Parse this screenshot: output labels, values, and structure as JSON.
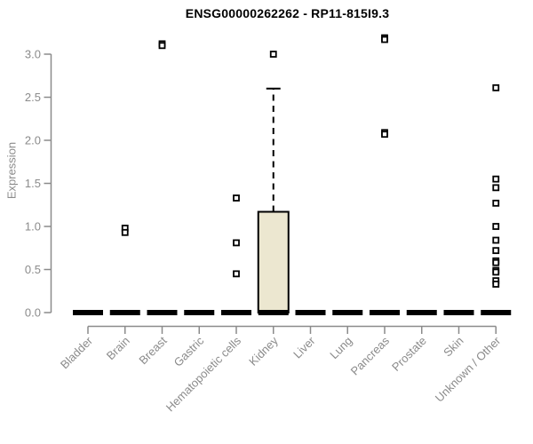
{
  "colors": {
    "background": "#ffffff",
    "axis": "#8b8b8b",
    "tick_label": "#8b8b8b",
    "title": "#000000",
    "box_fill": "#ece7d0",
    "box_border": "#000000",
    "median": "#000000",
    "outlier_stroke": "#000000",
    "outlier_fill": "#ffffff"
  },
  "chart_data": {
    "type": "boxplot",
    "title": "ENSG00000262262 - RP11-815I9.3",
    "ylabel": "Expression",
    "xlabel": "",
    "ylim": [
      0,
      3.25
    ],
    "yticks": [
      0.0,
      0.5,
      1.0,
      1.5,
      2.0,
      2.5,
      3.0
    ],
    "grid": "off",
    "legend": "none",
    "outlier_marker": "open-square",
    "categories": [
      "Bladder",
      "Brain",
      "Breast",
      "Gastric",
      "Hematopoietic cells",
      "Kidney",
      "Liver",
      "Lung",
      "Pancreas",
      "Prostate",
      "Skin",
      "Unknown / Other"
    ],
    "boxes": [
      {
        "category": "Bladder",
        "median": 0,
        "q1": 0,
        "q3": 0,
        "whisker_low": 0,
        "whisker_high": 0,
        "outliers": []
      },
      {
        "category": "Brain",
        "median": 0,
        "q1": 0,
        "q3": 0,
        "whisker_low": 0,
        "whisker_high": 0,
        "outliers": [
          0.98,
          0.93
        ]
      },
      {
        "category": "Breast",
        "median": 0,
        "q1": 0,
        "q3": 0,
        "whisker_low": 0,
        "whisker_high": 0,
        "outliers": [
          3.12,
          3.1
        ]
      },
      {
        "category": "Gastric",
        "median": 0,
        "q1": 0,
        "q3": 0,
        "whisker_low": 0,
        "whisker_high": 0,
        "outliers": []
      },
      {
        "category": "Hematopoietic cells",
        "median": 0,
        "q1": 0,
        "q3": 0,
        "whisker_low": 0,
        "whisker_high": 0,
        "outliers": [
          1.33,
          0.81,
          0.45
        ]
      },
      {
        "category": "Kidney",
        "median": 0,
        "q1": 0,
        "q3": 1.17,
        "whisker_low": 0,
        "whisker_high": 2.6,
        "outliers": [
          3.0
        ]
      },
      {
        "category": "Liver",
        "median": 0,
        "q1": 0,
        "q3": 0,
        "whisker_low": 0,
        "whisker_high": 0,
        "outliers": []
      },
      {
        "category": "Lung",
        "median": 0,
        "q1": 0,
        "q3": 0,
        "whisker_low": 0,
        "whisker_high": 0,
        "outliers": []
      },
      {
        "category": "Pancreas",
        "median": 0,
        "q1": 0,
        "q3": 0,
        "whisker_low": 0,
        "whisker_high": 0,
        "outliers": [
          3.19,
          3.17,
          2.09,
          2.07
        ]
      },
      {
        "category": "Prostate",
        "median": 0,
        "q1": 0,
        "q3": 0,
        "whisker_low": 0,
        "whisker_high": 0,
        "outliers": []
      },
      {
        "category": "Skin",
        "median": 0,
        "q1": 0,
        "q3": 0,
        "whisker_low": 0,
        "whisker_high": 0,
        "outliers": []
      },
      {
        "category": "Unknown / Other",
        "median": 0,
        "q1": 0,
        "q3": 0,
        "whisker_low": 0,
        "whisker_high": 0,
        "outliers": [
          2.61,
          1.55,
          1.45,
          1.27,
          1.0,
          0.84,
          0.72,
          0.6,
          0.58,
          0.49,
          0.47,
          0.37,
          0.33
        ]
      }
    ]
  }
}
